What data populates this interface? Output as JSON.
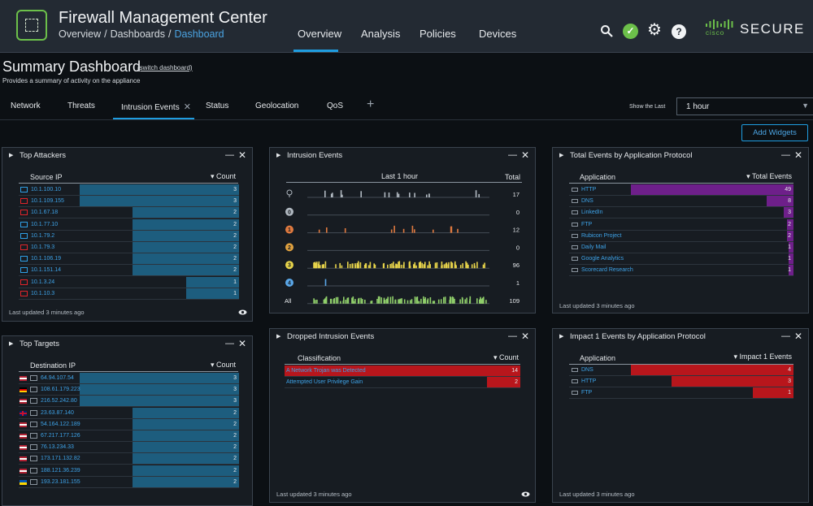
{
  "header": {
    "app_title": "Firewall Management Center",
    "breadcrumb": [
      "Overview",
      "Dashboards",
      "Dashboard"
    ],
    "nav": [
      "Overview",
      "Analysis",
      "Policies",
      "Devices"
    ],
    "active_nav": "Overview",
    "brand_top": "cisco",
    "brand_word": "SECURE",
    "icons": [
      "search-icon",
      "status-ok-icon",
      "gear-icon",
      "help-icon"
    ]
  },
  "page": {
    "title": "Summary Dashboard",
    "switch_link": "(switch dashboard)",
    "subtitle": "Provides a summary of activity on the appliance",
    "tabs": [
      "Network",
      "Threats",
      "Intrusion Events",
      "Status",
      "Geolocation",
      "QoS"
    ],
    "active_tab": "Intrusion Events",
    "tab_add": "+",
    "show_last_label": "Show the Last",
    "time_value": "1 hour",
    "add_widgets": "Add Widgets"
  },
  "colors": {
    "accent": "#1f9de0",
    "bar_blue": "#1d5d7e",
    "bar_purple": "#6e1f8a",
    "bar_red": "#b8161c",
    "ok_green": "#6cc04a"
  },
  "top_attackers": {
    "title": "Top Attackers",
    "col_ip": "Source IP",
    "col_count": "Count",
    "sort_icon": "sort-desc-icon",
    "rows": [
      {
        "ip": "10.1.100.10",
        "count": 3,
        "color": "blue"
      },
      {
        "ip": "10.1.109.155",
        "count": 3,
        "color": "red"
      },
      {
        "ip": "10.1.67.18",
        "count": 2,
        "color": "red"
      },
      {
        "ip": "10.1.77.10",
        "count": 2,
        "color": "blue"
      },
      {
        "ip": "10.1.79.2",
        "count": 2,
        "color": "blue"
      },
      {
        "ip": "10.1.79.3",
        "count": 2,
        "color": "red"
      },
      {
        "ip": "10.1.106.19",
        "count": 2,
        "color": "blue"
      },
      {
        "ip": "10.1.151.14",
        "count": 2,
        "color": "blue"
      },
      {
        "ip": "10.1.3.24",
        "count": 1,
        "color": "red"
      },
      {
        "ip": "10.1.10.3",
        "count": 1,
        "color": "red"
      }
    ],
    "footer": "Last updated 3 minutes ago"
  },
  "top_targets": {
    "title": "Top Targets",
    "col_ip": "Destination IP",
    "col_count": "Count",
    "rows": [
      {
        "ip": "64.94.107.54",
        "count": 3,
        "flag": "us"
      },
      {
        "ip": "108.61.179.223",
        "count": 3,
        "flag": "de"
      },
      {
        "ip": "216.52.242.80",
        "count": 3,
        "flag": "us"
      },
      {
        "ip": "23.63.87.140",
        "count": 2,
        "flag": "gb"
      },
      {
        "ip": "54.164.122.189",
        "count": 2,
        "flag": "us"
      },
      {
        "ip": "67.217.177.126",
        "count": 2,
        "flag": "us"
      },
      {
        "ip": "76.13.234.33",
        "count": 2,
        "flag": "us"
      },
      {
        "ip": "173.171.132.82",
        "count": 2,
        "flag": "us"
      },
      {
        "ip": "188.121.36.239",
        "count": 2,
        "flag": "us"
      },
      {
        "ip": "193.23.181.155",
        "count": 2,
        "flag": "ua"
      }
    ]
  },
  "intrusion_events": {
    "title": "Intrusion Events",
    "col_range": "Last 1 hour",
    "col_total": "Total",
    "rows": [
      {
        "level": "",
        "icon": "priority-all-icon",
        "total": "17",
        "color": "#b0b8c0",
        "count": 17
      },
      {
        "level": "0",
        "icon": "severity-0-icon",
        "total": "0",
        "color": "#b0b8c0",
        "count": 0
      },
      {
        "level": "1",
        "icon": "severity-1-icon",
        "total": "12",
        "color": "#e07a3f",
        "count": 12
      },
      {
        "level": "2",
        "icon": "severity-2-icon",
        "total": "0",
        "color": "#e0a13f",
        "count": 0
      },
      {
        "level": "3",
        "icon": "severity-3-icon",
        "total": "96",
        "color": "#e6d34a",
        "count": 96
      },
      {
        "level": "4",
        "icon": "severity-4-icon",
        "total": "1",
        "color": "#5aa7e8",
        "count": 1
      },
      {
        "level": "All",
        "icon": "",
        "total": "109",
        "color": "#8fce6a",
        "count": 109
      }
    ],
    "footer": ""
  },
  "dropped_events": {
    "title": "Dropped Intrusion Events",
    "col_class": "Classification",
    "col_count": "Count",
    "rows": [
      {
        "name": "A Network Trojan was Detected",
        "count": 14
      },
      {
        "name": "Attempted User Privilege Gain",
        "count": 2
      }
    ],
    "footer": "Last updated 3 minutes ago"
  },
  "total_events": {
    "title": "Total Events by Application Protocol",
    "col_app": "Application",
    "col_count": "Total Events",
    "rows": [
      {
        "name": "HTTP",
        "count": 49
      },
      {
        "name": "DNS",
        "count": 8
      },
      {
        "name": "LinkedIn",
        "count": 3
      },
      {
        "name": "FTP",
        "count": 2
      },
      {
        "name": "Rubicon Project",
        "count": 2
      },
      {
        "name": "Daily Mail",
        "count": 1
      },
      {
        "name": "Google Analytics",
        "count": 1
      },
      {
        "name": "Scorecard Research",
        "count": 1
      }
    ],
    "footer": "Last updated 3 minutes ago"
  },
  "impact_events": {
    "title": "Impact 1 Events by Application Protocol",
    "col_app": "Application",
    "col_count": "Impact 1 Events",
    "rows": [
      {
        "name": "DNS",
        "count": 4
      },
      {
        "name": "HTTP",
        "count": 3
      },
      {
        "name": "FTP",
        "count": 1
      }
    ],
    "footer": "Last updated 3 minutes ago"
  }
}
